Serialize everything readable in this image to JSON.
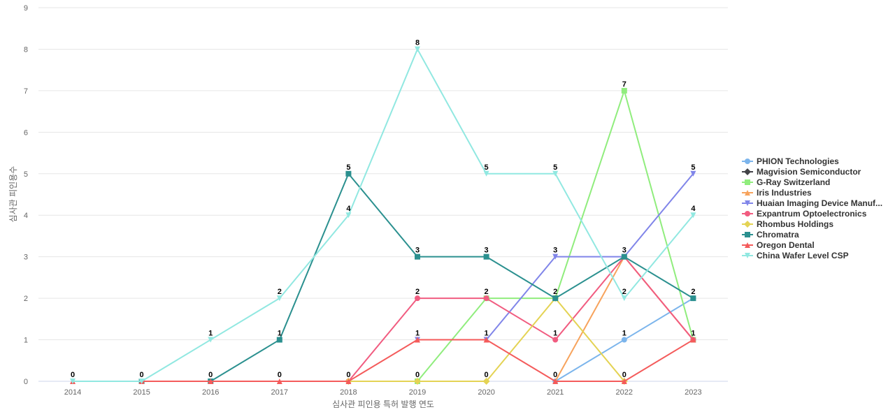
{
  "chart_data": {
    "type": "line",
    "title": "",
    "xlabel": "심사관 피인용 특허 발행 연도",
    "ylabel": "심사관 피인용수",
    "ylim": [
      0,
      9
    ],
    "yticks": [
      0,
      1,
      2,
      3,
      4,
      5,
      6,
      7,
      8,
      9
    ],
    "grid": true,
    "legend_position": "right",
    "categories": [
      "2014",
      "2015",
      "2016",
      "2017",
      "2018",
      "2019",
      "2020",
      "2021",
      "2022",
      "2023"
    ],
    "series": [
      {
        "name": "PHION Technologies",
        "legend_label": "PHION Technologies",
        "color": "#7cb5ec",
        "marker": "circle",
        "values": [
          null,
          null,
          null,
          null,
          null,
          null,
          null,
          0,
          1,
          2
        ],
        "labels": [
          null,
          null,
          null,
          null,
          null,
          null,
          null,
          null,
          "1",
          "2"
        ]
      },
      {
        "name": "Magvision Semiconductor",
        "legend_label": "Magvision Semiconductor",
        "color": "#434348",
        "marker": "diamond",
        "values": [
          null,
          null,
          null,
          null,
          null,
          null,
          null,
          null,
          null,
          null
        ],
        "labels": [
          null,
          null,
          null,
          null,
          null,
          null,
          null,
          null,
          null,
          null
        ]
      },
      {
        "name": "G-Ray Switzerland",
        "legend_label": "G-Ray Switzerland",
        "color": "#90ed7d",
        "marker": "square",
        "values": [
          null,
          null,
          null,
          null,
          null,
          0,
          2,
          2,
          7,
          1
        ],
        "labels": [
          null,
          null,
          null,
          null,
          null,
          null,
          "2",
          "2",
          "7",
          null
        ]
      },
      {
        "name": "Iris Industries",
        "legend_label": "Iris Industries",
        "color": "#f7a35c",
        "marker": "triangle",
        "values": [
          null,
          null,
          null,
          null,
          null,
          null,
          null,
          0,
          3,
          1
        ],
        "labels": [
          null,
          null,
          null,
          null,
          null,
          null,
          null,
          null,
          null,
          "1"
        ]
      },
      {
        "name": "Huaian Imaging Device Manufacturer",
        "legend_label": "Huaian Imaging Device Manuf...",
        "color": "#8085e9",
        "marker": "triangle-down",
        "values": [
          null,
          null,
          null,
          null,
          null,
          1,
          1,
          3,
          3,
          5
        ],
        "labels": [
          null,
          null,
          null,
          null,
          null,
          null,
          null,
          "3",
          null,
          "5"
        ]
      },
      {
        "name": "Expantrum Optoelectronics",
        "legend_label": "Expantrum Optoelectronics",
        "color": "#f15c80",
        "marker": "circle",
        "values": [
          null,
          null,
          null,
          null,
          0,
          2,
          2,
          1,
          3,
          1
        ],
        "labels": [
          null,
          null,
          null,
          null,
          null,
          "2",
          null,
          "1",
          null,
          null
        ]
      },
      {
        "name": "Rhombus Holdings",
        "legend_label": "Rhombus Holdings",
        "color": "#e4d354",
        "marker": "diamond",
        "values": [
          null,
          null,
          null,
          null,
          0,
          0,
          0,
          2,
          0,
          null
        ],
        "labels": [
          null,
          null,
          null,
          null,
          null,
          "0",
          "0",
          null,
          "0",
          null
        ]
      },
      {
        "name": "Chromatra",
        "legend_label": "Chromatra",
        "color": "#2b908f",
        "marker": "square",
        "values": [
          null,
          0,
          0,
          1,
          5,
          3,
          3,
          2,
          3,
          2
        ],
        "labels": [
          null,
          null,
          null,
          "1",
          "5",
          "3",
          "3",
          null,
          "3",
          null
        ]
      },
      {
        "name": "Oregon Dental",
        "legend_label": "Oregon Dental",
        "color": "#f45b5b",
        "marker": "triangle",
        "values": [
          0,
          0,
          0,
          0,
          0,
          1,
          1,
          0,
          0,
          1
        ],
        "labels": [
          null,
          null,
          "0",
          "0",
          "0",
          "1",
          "1",
          "0",
          null,
          null
        ]
      },
      {
        "name": "China Wafer Level CSP",
        "legend_label": "China Wafer Level CSP",
        "color": "#91e8e1",
        "marker": "triangle-down",
        "values": [
          0,
          0,
          1,
          2,
          4,
          8,
          5,
          5,
          2,
          4
        ],
        "labels": [
          "0",
          "0",
          "1",
          "2",
          "4",
          "8",
          "5",
          "5",
          "2",
          "4"
        ]
      }
    ]
  }
}
